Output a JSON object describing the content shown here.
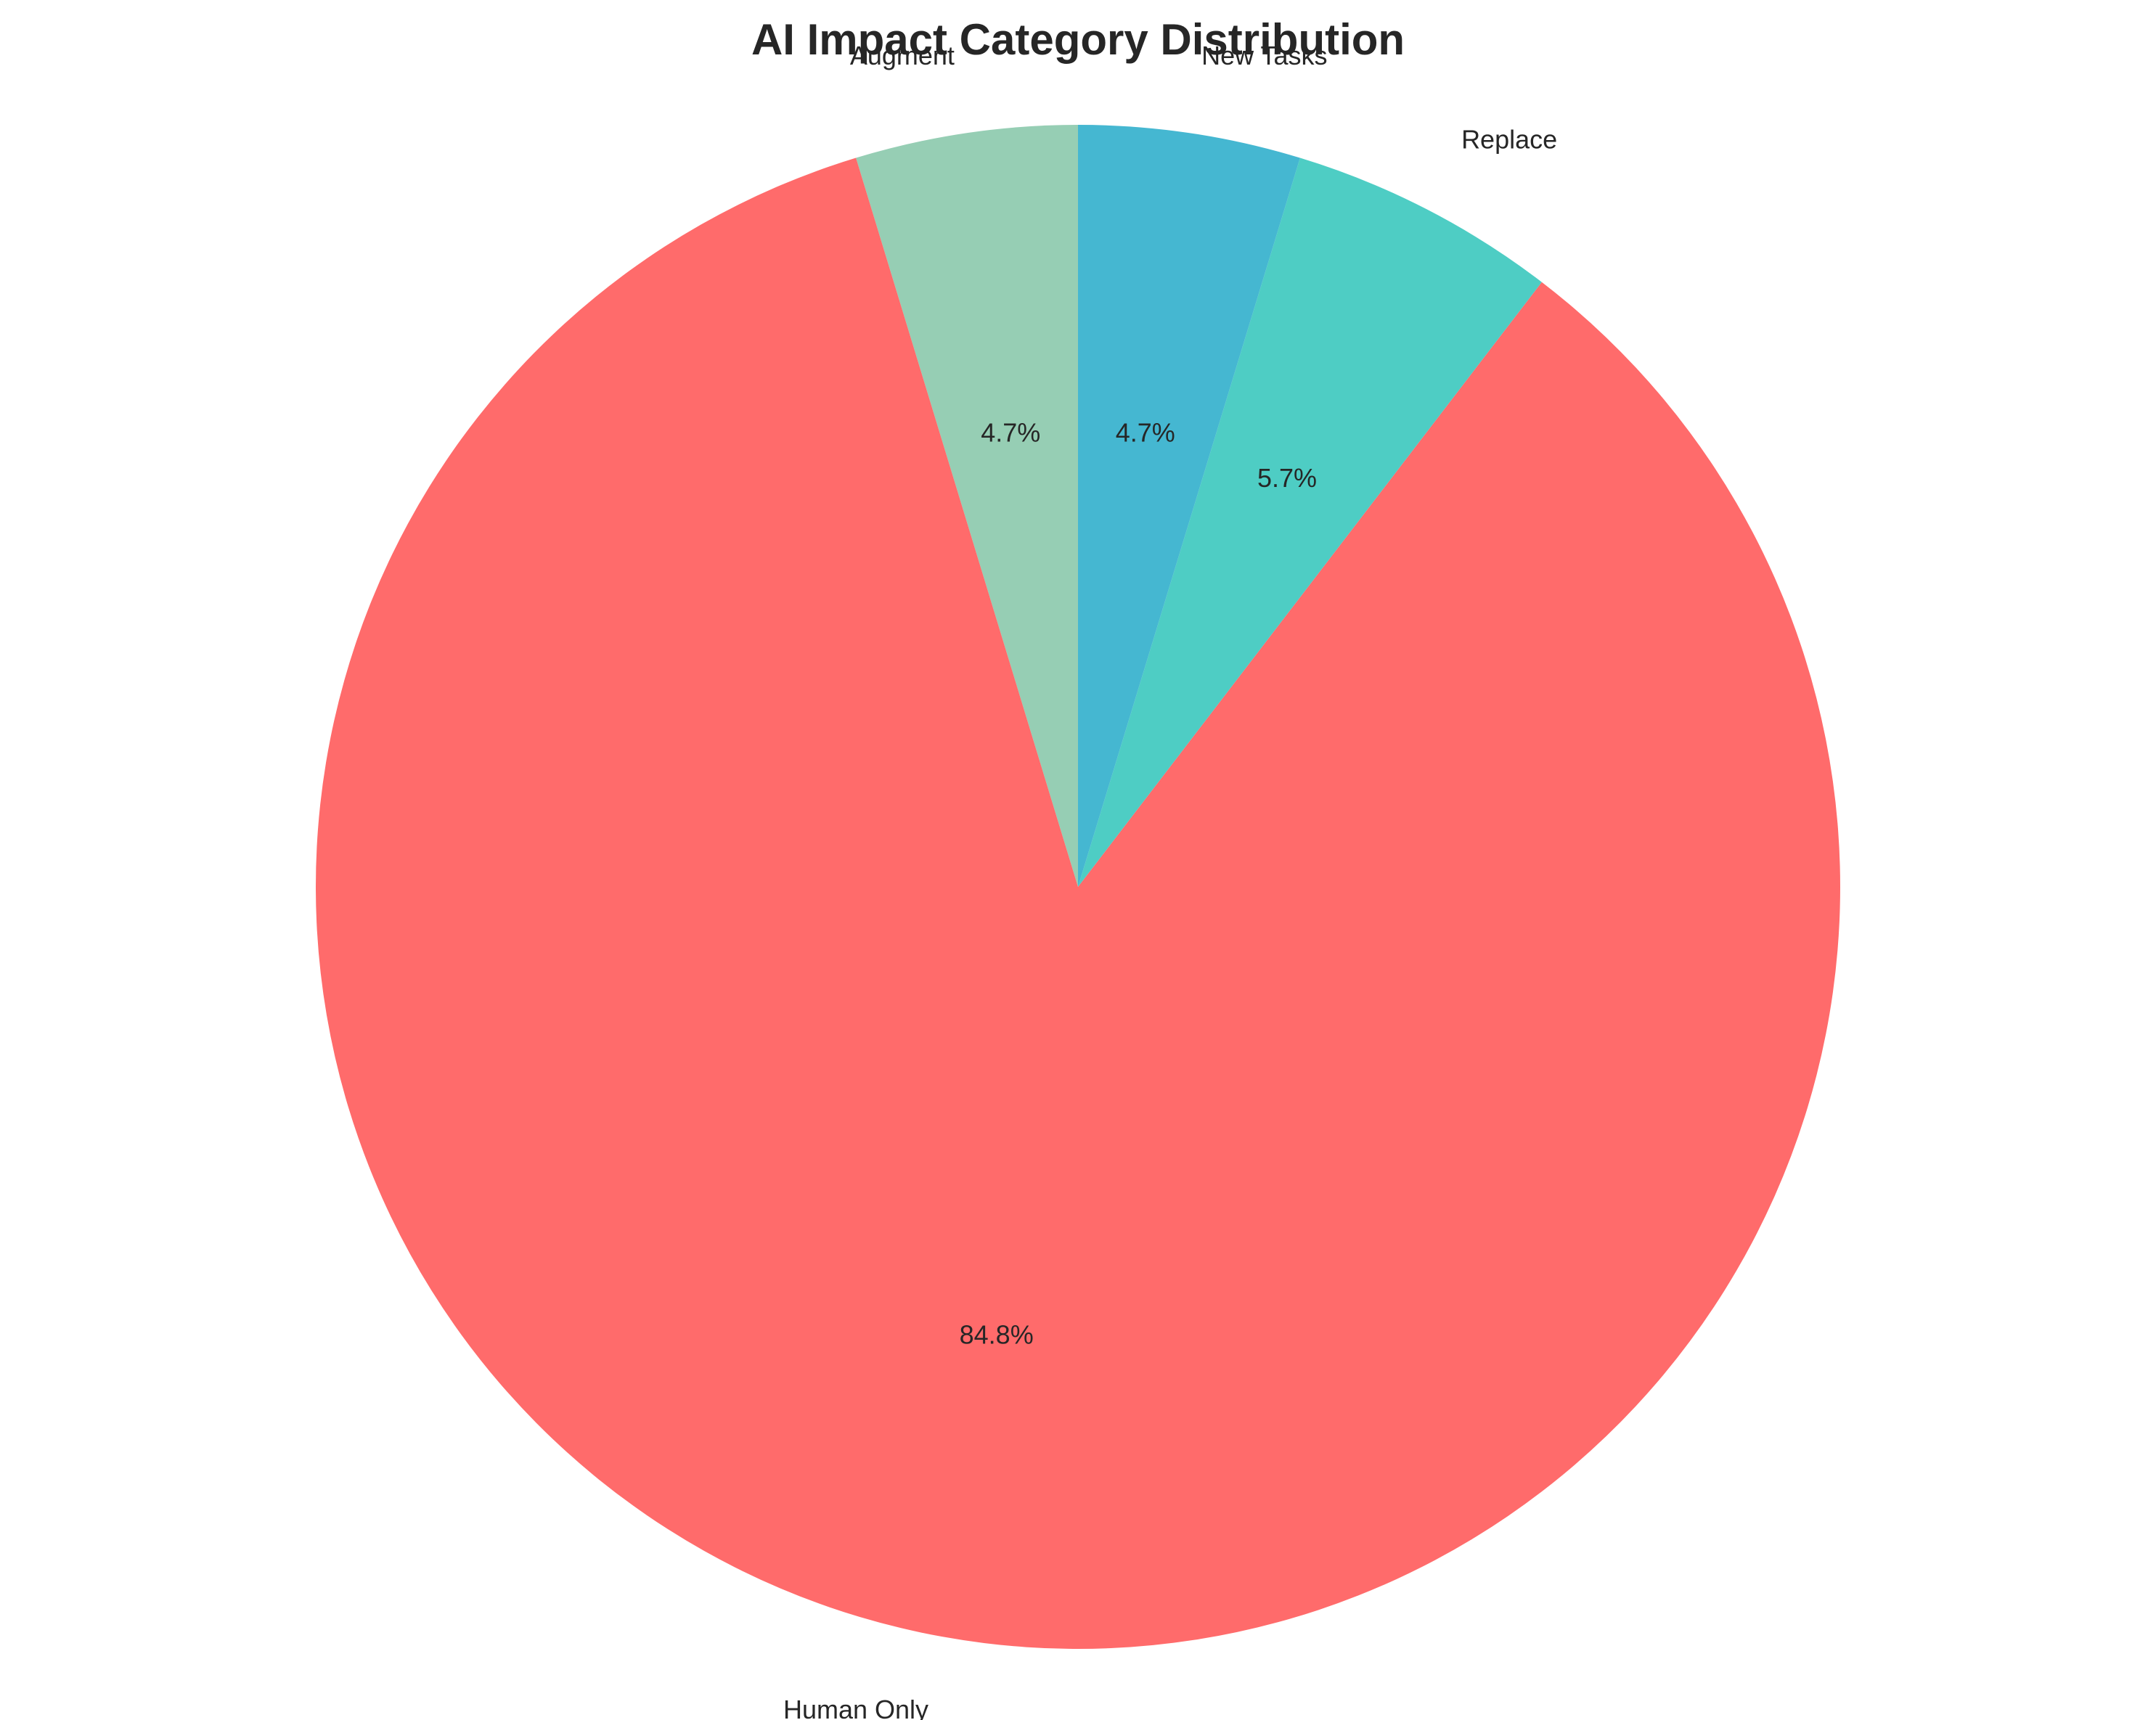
{
  "chart_data": {
    "type": "pie",
    "title": "AI Impact Category Distribution",
    "start_angle_deg": 90,
    "direction": "counterclockwise",
    "slices": [
      {
        "label": "Augment",
        "value": 4.7,
        "pct_label": "4.7%",
        "color": "#96CEB4"
      },
      {
        "label": "Human Only",
        "value": 84.8,
        "pct_label": "84.8%",
        "color": "#FF6B6B"
      },
      {
        "label": "Replace",
        "value": 5.7,
        "pct_label": "5.7%",
        "color": "#4ECDC4"
      },
      {
        "label": "New Tasks",
        "value": 4.7,
        "pct_label": "4.7%",
        "color": "#45B7D1"
      }
    ]
  }
}
